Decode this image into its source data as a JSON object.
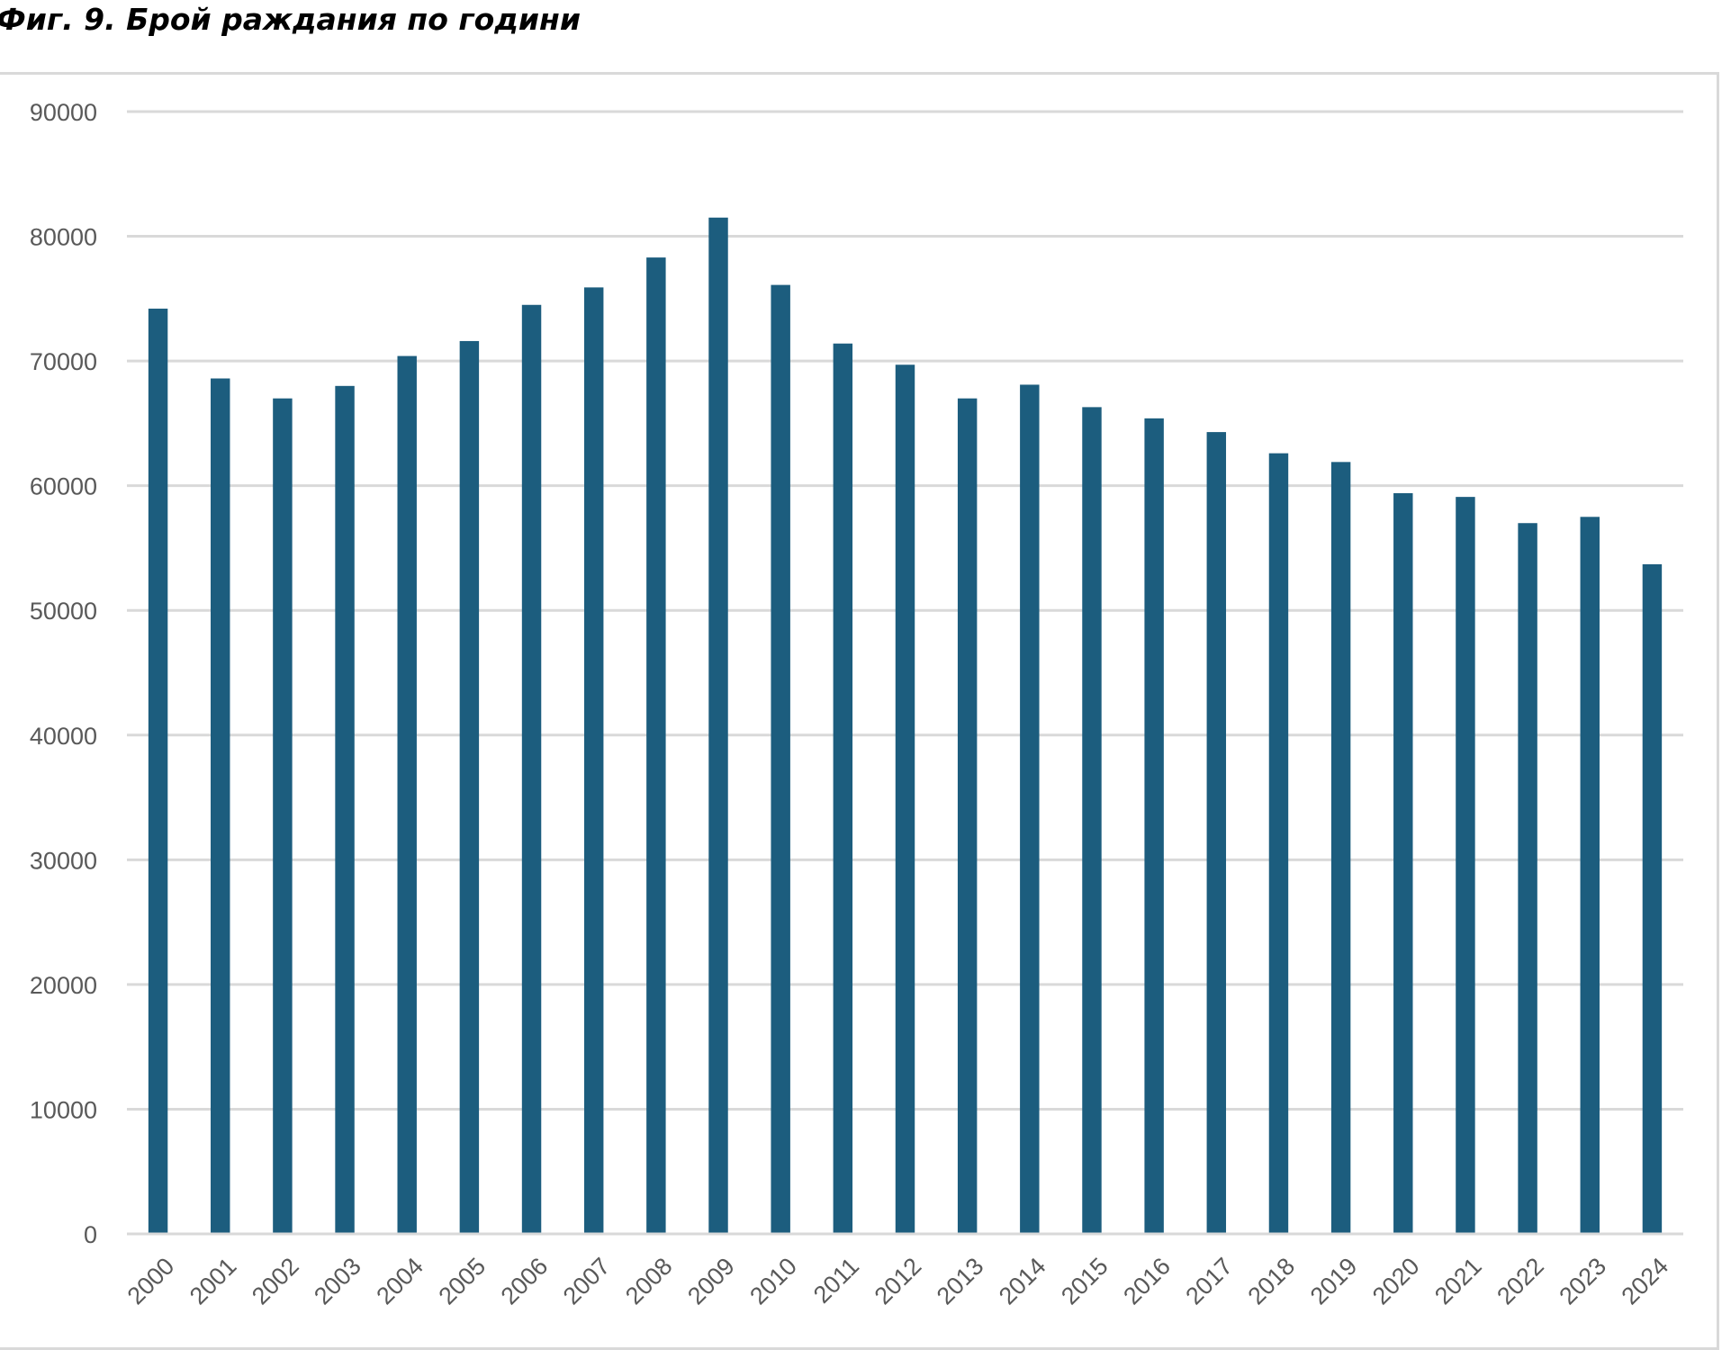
{
  "figure": {
    "title": "Фиг. 9. Брой раждания по години"
  },
  "chart_data": {
    "type": "bar",
    "title": "Фиг. 9. Брой раждания по години",
    "xlabel": "",
    "ylabel": "",
    "ylim": [
      0,
      90000
    ],
    "yticks": [
      0,
      10000,
      20000,
      30000,
      40000,
      50000,
      60000,
      70000,
      80000,
      90000
    ],
    "ytick_labels": [
      "0",
      "10000",
      "20000",
      "30000",
      "40000",
      "50000",
      "60000",
      "70000",
      "80000",
      "90000"
    ],
    "grid": true,
    "legend": "none",
    "bar_color": "#1c5d7e",
    "categories": [
      "2000",
      "2001",
      "2002",
      "2003",
      "2004",
      "2005",
      "2006",
      "2007",
      "2008",
      "2009",
      "2010",
      "2011",
      "2012",
      "2013",
      "2014",
      "2015",
      "2016",
      "2017",
      "2018",
      "2019",
      "2020",
      "2021",
      "2022",
      "2023",
      "2024"
    ],
    "values": [
      74200,
      68600,
      67000,
      68000,
      70400,
      71600,
      74500,
      75900,
      78300,
      81500,
      76100,
      71400,
      69700,
      67000,
      68100,
      66300,
      65400,
      64300,
      62600,
      61900,
      59400,
      59100,
      57000,
      57500,
      53700
    ]
  }
}
